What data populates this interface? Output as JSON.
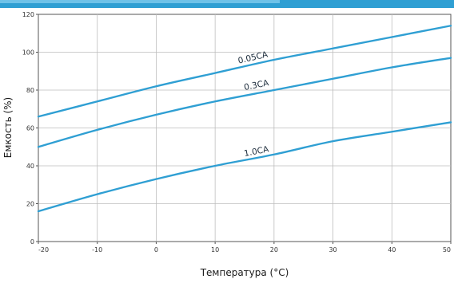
{
  "chart_data": {
    "type": "line",
    "title": "",
    "xlabel": "Температура (°C)",
    "ylabel": "Емкость (%)",
    "xlim": [
      -20,
      50
    ],
    "ylim": [
      0,
      120
    ],
    "x_ticks": [
      -20,
      -10,
      0,
      10,
      20,
      30,
      40,
      50
    ],
    "y_ticks": [
      0,
      20,
      40,
      60,
      80,
      100,
      120
    ],
    "x_tick_labels": [
      "-20",
      "-10",
      "0",
      "10",
      "20",
      "30",
      "40",
      "50"
    ],
    "y_tick_labels": [
      "0",
      "20",
      "40",
      "60",
      "80",
      "100",
      "120"
    ],
    "grid": true,
    "legend": "none",
    "line_color": "#2f9fd3",
    "series": [
      {
        "name": "0.05CA",
        "x": [
          -20,
          -10,
          0,
          10,
          20,
          30,
          40,
          50
        ],
        "y": [
          66,
          74,
          82,
          89,
          96,
          102,
          108,
          114
        ],
        "label_at": {
          "x": 14,
          "y": 94
        },
        "label_angle": -13
      },
      {
        "name": "0.3CA",
        "x": [
          -20,
          -10,
          0,
          10,
          20,
          30,
          40,
          50
        ],
        "y": [
          50,
          59,
          67,
          74,
          80,
          86,
          92,
          97
        ],
        "label_at": {
          "x": 15,
          "y": 80
        },
        "label_angle": -11
      },
      {
        "name": "1.0CA",
        "x": [
          -20,
          -10,
          0,
          10,
          20,
          30,
          40,
          50
        ],
        "y": [
          16,
          25,
          33,
          40,
          46,
          53,
          58,
          63
        ],
        "label_at": {
          "x": 15,
          "y": 45
        },
        "label_angle": -11
      }
    ]
  }
}
